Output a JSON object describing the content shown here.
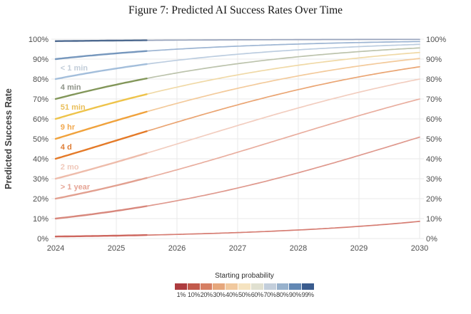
{
  "figure": {
    "title": "Figure 7: Predicted AI Success Rates Over Time"
  },
  "axes": {
    "y_label": "Predicted Success Rate"
  },
  "legend": {
    "title": "Starting probability",
    "tick_labels": [
      "1%",
      "10%",
      "20%",
      "30%",
      "40%",
      "50%",
      "60%",
      "70%",
      "80%",
      "90%",
      "99%"
    ],
    "colors": [
      "#ad3c3f",
      "#c25a4b",
      "#d67f63",
      "#e6a77c",
      "#f1c99e",
      "#f5e3c0",
      "#e0e0d0",
      "#c3cedb",
      "#97b1cc",
      "#6288b4",
      "#3a5c8e"
    ]
  },
  "chart_data": {
    "type": "line",
    "title": "Figure 7: Predicted AI Success Rates Over Time",
    "xlabel": "",
    "ylabel": "Predicted Success Rate",
    "x_range": [
      2024,
      2030
    ],
    "ylim": [
      0,
      100
    ],
    "grid": true,
    "grid_color": "#e9e9e9",
    "x_ticks": [
      {
        "value": 2024,
        "label": "2024"
      },
      {
        "value": 2025,
        "label": "2025"
      },
      {
        "value": 2026,
        "label": "2026"
      },
      {
        "value": 2027,
        "label": "2027"
      },
      {
        "value": 2028,
        "label": "2028"
      },
      {
        "value": 2029,
        "label": "2029"
      },
      {
        "value": 2030,
        "label": "2030"
      }
    ],
    "y_ticks": [
      {
        "value": 0,
        "label": "0%"
      },
      {
        "value": 10,
        "label": "10%"
      },
      {
        "value": 20,
        "label": "20%"
      },
      {
        "value": 30,
        "label": "30%"
      },
      {
        "value": 40,
        "label": "40%"
      },
      {
        "value": 50,
        "label": "50%"
      },
      {
        "value": 60,
        "label": "60%"
      },
      {
        "value": 70,
        "label": "70%"
      },
      {
        "value": 80,
        "label": "80%"
      },
      {
        "value": 90,
        "label": "90%"
      },
      {
        "value": 100,
        "label": "100%"
      }
    ],
    "model": {
      "type": "logistic_in_logit_space",
      "logit_rate_per_year": 0.372,
      "observed_bold_until": 2025.5
    },
    "series": [
      {
        "starting_probability": 99,
        "horizon_label": "",
        "color": "#97a3bc",
        "bold_color": "#4e6a90",
        "years": [
          2024,
          2025,
          2026,
          2027,
          2028,
          2029,
          2030
        ],
        "values_by_year": [
          99,
          99.3,
          99.5,
          99.7,
          99.8,
          99.8,
          99.9
        ]
      },
      {
        "starting_probability": 90,
        "horizon_label": "",
        "color": "#9db5d3",
        "bold_color": "#7697bd",
        "years": [
          2024,
          2025,
          2026,
          2027,
          2028,
          2029,
          2030
        ],
        "values_by_year": [
          90,
          92.9,
          95,
          96.5,
          97.6,
          98.3,
          98.8
        ]
      },
      {
        "starting_probability": 80,
        "horizon_label": "< 1 min",
        "color": "#bccde0",
        "bold_color": "#a3bedb",
        "years": [
          2024,
          2025,
          2026,
          2027,
          2028,
          2029,
          2030
        ],
        "values_by_year": [
          80,
          85.3,
          89.4,
          92.4,
          94.7,
          96.2,
          97.4
        ]
      },
      {
        "starting_probability": 70,
        "horizon_label": "4 min",
        "color": "#bcc3ac",
        "bold_color": "#829659",
        "years": [
          2024,
          2025,
          2026,
          2027,
          2028,
          2029,
          2030
        ],
        "values_by_year": [
          70,
          77.2,
          83.1,
          87.7,
          91.2,
          93.7,
          95.6
        ]
      },
      {
        "starting_probability": 60,
        "horizon_label": "51 min",
        "color": "#f0d9a6",
        "bold_color": "#eec34a",
        "years": [
          2024,
          2025,
          2026,
          2027,
          2028,
          2029,
          2030
        ],
        "values_by_year": [
          60,
          68.5,
          75.9,
          82.1,
          86.9,
          90.6,
          93.3
        ]
      },
      {
        "starting_probability": 50,
        "horizon_label": "9 hr",
        "color": "#f3ca9b",
        "bold_color": "#f0a23c",
        "years": [
          2024,
          2025,
          2026,
          2027,
          2028,
          2029,
          2030
        ],
        "values_by_year": [
          50,
          59.2,
          67.8,
          75.3,
          81.6,
          86.5,
          90.3
        ]
      },
      {
        "starting_probability": 40,
        "horizon_label": "4 d",
        "color": "#eaa573",
        "bold_color": "#e47a28",
        "years": [
          2024,
          2025,
          2026,
          2027,
          2028,
          2029,
          2030
        ],
        "values_by_year": [
          40,
          49.2,
          58.4,
          67.1,
          74.7,
          81.1,
          86.1
        ]
      },
      {
        "starting_probability": 30,
        "horizon_label": "2 mo",
        "color": "#f2cdbf",
        "bold_color": "#eebcab",
        "years": [
          2024,
          2025,
          2026,
          2027,
          2028,
          2029,
          2030
        ],
        "values_by_year": [
          30,
          38.3,
          47.4,
          56.7,
          65.5,
          73.4,
          80
        ]
      },
      {
        "starting_probability": 20,
        "horizon_label": "> 1 year",
        "color": "#e9ae9f",
        "bold_color": "#e2a090",
        "years": [
          2024,
          2025,
          2026,
          2027,
          2028,
          2029,
          2030
        ],
        "values_by_year": [
          20,
          26.6,
          34.5,
          43.3,
          52.5,
          61.6,
          70
        ]
      },
      {
        "starting_probability": 10,
        "horizon_label": "",
        "color": "#df998e",
        "bold_color": "#d8887d",
        "years": [
          2024,
          2025,
          2026,
          2027,
          2028,
          2029,
          2030
        ],
        "values_by_year": [
          10,
          13.9,
          18.9,
          25.3,
          33,
          41.7,
          50.9
        ]
      },
      {
        "starting_probability": 1,
        "horizon_label": "",
        "color": "#d67d73",
        "bold_color": "#cd665e",
        "years": [
          2024,
          2025,
          2026,
          2027,
          2028,
          2029,
          2030
        ],
        "values_by_year": [
          1,
          1.4,
          2.1,
          3,
          4.3,
          6.1,
          8.6
        ]
      }
    ],
    "curve_labels": [
      {
        "series": 80,
        "text": "< 1 min",
        "x_year": 2024.08,
        "y_percent": 85.8,
        "color": "#c2cdd9"
      },
      {
        "series": 70,
        "text": "4 min",
        "x_year": 2024.08,
        "y_percent": 76,
        "color": "#8f9489"
      },
      {
        "series": 60,
        "text": "51 min",
        "x_year": 2024.08,
        "y_percent": 66,
        "color": "#eabf5a"
      },
      {
        "series": 50,
        "text": "9 hr",
        "x_year": 2024.08,
        "y_percent": 56,
        "color": "#f2a84e"
      },
      {
        "series": 40,
        "text": "4 d",
        "x_year": 2024.08,
        "y_percent": 46,
        "color": "#df7d35"
      },
      {
        "series": 30,
        "text": "2 mo",
        "x_year": 2024.08,
        "y_percent": 36,
        "color": "#f0c8ba"
      },
      {
        "series": 20,
        "text": "> 1 year",
        "x_year": 2024.08,
        "y_percent": 26,
        "color": "#e6a495"
      }
    ],
    "legend_position": "bottom"
  }
}
